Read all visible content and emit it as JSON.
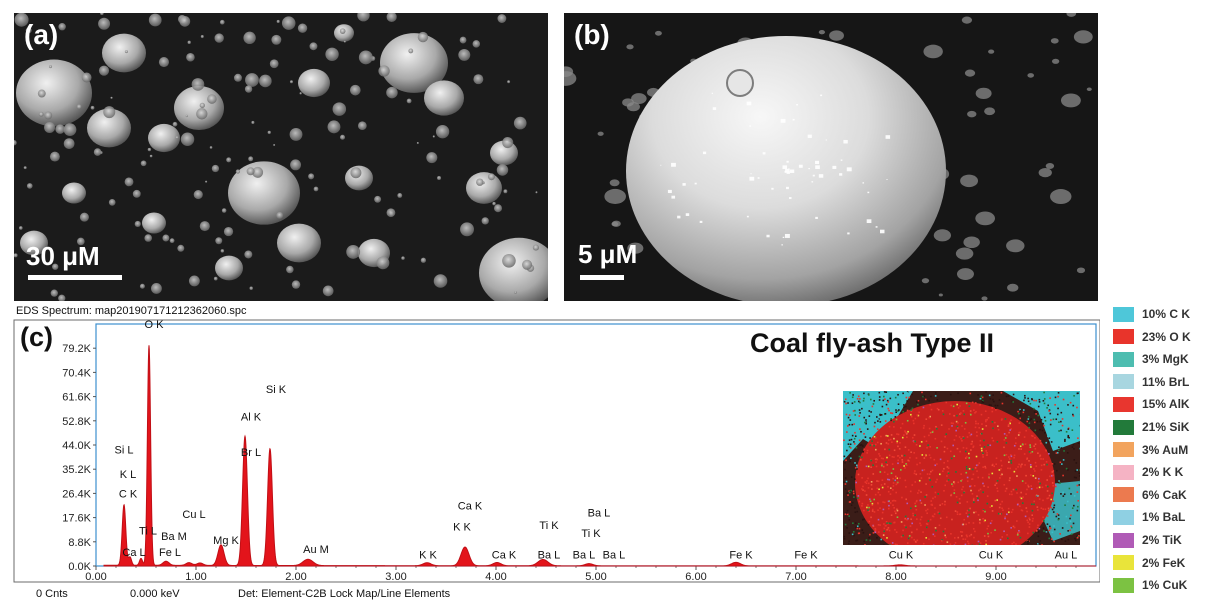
{
  "panel_a": {
    "letter": "(a)",
    "scale": "30 μM"
  },
  "panel_b": {
    "letter": "(b)",
    "scale": "5 μM"
  },
  "panel_c": {
    "letter": "(c)",
    "title": "Coal fly-ash Type II"
  },
  "spectrum_file": "EDS Spectrum: map20190717121236​2060.spc",
  "footer": {
    "cnts": "0 Cnts",
    "kev": "0.000 keV",
    "det": "Det: Element-C2B Lock Map/Line Elements"
  },
  "legend": [
    {
      "label": "10% C K",
      "color": "#4ec7d9"
    },
    {
      "label": "23% O K",
      "color": "#e8342b"
    },
    {
      "label": "3% MgK",
      "color": "#4dbdb0"
    },
    {
      "label": "11% BrL",
      "color": "#a8d6e0"
    },
    {
      "label": "15% AlK",
      "color": "#e8362f"
    },
    {
      "label": "21% SiK",
      "color": "#227a3a"
    },
    {
      "label": "3% AuM",
      "color": "#f2a45e"
    },
    {
      "label": "2% K K",
      "color": "#f5b3c4"
    },
    {
      "label": "6% CaK",
      "color": "#ec7a4f"
    },
    {
      "label": "1% BaL",
      "color": "#8fd0e3"
    },
    {
      "label": "2% TiK",
      "color": "#b05bb6"
    },
    {
      "label": "2% FeK",
      "color": "#e9e43a"
    },
    {
      "label": "1% CuK",
      "color": "#7cc242"
    }
  ],
  "chart_data": {
    "type": "line",
    "title": "Coal fly-ash Type II",
    "xlabel": "",
    "ylabel": "",
    "xlim": [
      0,
      10
    ],
    "ylim": [
      0,
      88000
    ],
    "x_ticks": [
      "0.00",
      "1.00",
      "2.00",
      "3.00",
      "4.00",
      "5.00",
      "6.00",
      "7.00",
      "8.00",
      "9.00"
    ],
    "y_ticks": [
      "0.0K",
      "8.8K",
      "17.6K",
      "26.4K",
      "35.2K",
      "44.0K",
      "52.8K",
      "61.6K",
      "70.4K",
      "79.2K"
    ],
    "series_color": "#e3141b",
    "baseline": 300,
    "peaks": [
      {
        "x": 0.28,
        "h": 22000,
        "w": 0.018
      },
      {
        "x": 0.34,
        "h": 3000,
        "w": 0.015
      },
      {
        "x": 0.45,
        "h": 2500,
        "w": 0.015
      },
      {
        "x": 0.53,
        "h": 80000,
        "w": 0.016
      },
      {
        "x": 0.7,
        "h": 1500,
        "w": 0.03
      },
      {
        "x": 0.93,
        "h": 1000,
        "w": 0.03
      },
      {
        "x": 1.04,
        "h": 900,
        "w": 0.03
      },
      {
        "x": 1.25,
        "h": 7500,
        "w": 0.03
      },
      {
        "x": 1.49,
        "h": 47000,
        "w": 0.024
      },
      {
        "x": 1.74,
        "h": 42500,
        "w": 0.024
      },
      {
        "x": 2.12,
        "h": 2300,
        "w": 0.05
      },
      {
        "x": 3.31,
        "h": 1100,
        "w": 0.04
      },
      {
        "x": 3.69,
        "h": 6800,
        "w": 0.04
      },
      {
        "x": 4.01,
        "h": 1200,
        "w": 0.04
      },
      {
        "x": 4.47,
        "h": 2300,
        "w": 0.05
      },
      {
        "x": 4.93,
        "h": 800,
        "w": 0.04
      },
      {
        "x": 6.4,
        "h": 1300,
        "w": 0.045
      },
      {
        "x": 8.04,
        "h": 400,
        "w": 0.05
      }
    ],
    "annotations": [
      {
        "text": "O  K",
        "x": 0.58,
        "y": 86500
      },
      {
        "text": "Si K",
        "x": 1.8,
        "y": 63000
      },
      {
        "text": "Al K",
        "x": 1.55,
        "y": 53000
      },
      {
        "text": "Br L",
        "x": 1.55,
        "y": 40000
      },
      {
        "text": "Si L",
        "x": 0.28,
        "y": 41000
      },
      {
        "text": "K  L",
        "x": 0.32,
        "y": 32000
      },
      {
        "text": "C  K",
        "x": 0.32,
        "y": 25000
      },
      {
        "text": "Cu L",
        "x": 0.98,
        "y": 17500
      },
      {
        "text": "Ti L",
        "x": 0.52,
        "y": 11500
      },
      {
        "text": "Ba M",
        "x": 0.78,
        "y": 9500
      },
      {
        "text": "Mg K",
        "x": 1.3,
        "y": 8000
      },
      {
        "text": "Ca L",
        "x": 0.38,
        "y": 3700
      },
      {
        "text": "Fe L",
        "x": 0.74,
        "y": 3700
      },
      {
        "text": "Au M",
        "x": 2.2,
        "y": 4800
      },
      {
        "text": "Ca K",
        "x": 3.74,
        "y": 20500
      },
      {
        "text": "K  K",
        "x": 3.66,
        "y": 13000
      },
      {
        "text": "K  K",
        "x": 3.32,
        "y": 2800
      },
      {
        "text": "Ca K",
        "x": 4.08,
        "y": 2800
      },
      {
        "text": "Ti K",
        "x": 4.53,
        "y": 13500
      },
      {
        "text": "Ba L",
        "x": 5.03,
        "y": 18000
      },
      {
        "text": "Ti K",
        "x": 4.95,
        "y": 10500
      },
      {
        "text": "Ba L",
        "x": 4.53,
        "y": 2800
      },
      {
        "text": "Ba L",
        "x": 4.88,
        "y": 2800
      },
      {
        "text": "Ba L",
        "x": 5.18,
        "y": 2800
      },
      {
        "text": "Fe K",
        "x": 6.45,
        "y": 2800
      },
      {
        "text": "Fe K",
        "x": 7.1,
        "y": 2800
      },
      {
        "text": "Cu K",
        "x": 8.05,
        "y": 2800
      },
      {
        "text": "Cu K",
        "x": 8.95,
        "y": 2800
      },
      {
        "text": "Au L",
        "x": 9.7,
        "y": 2800
      }
    ]
  }
}
